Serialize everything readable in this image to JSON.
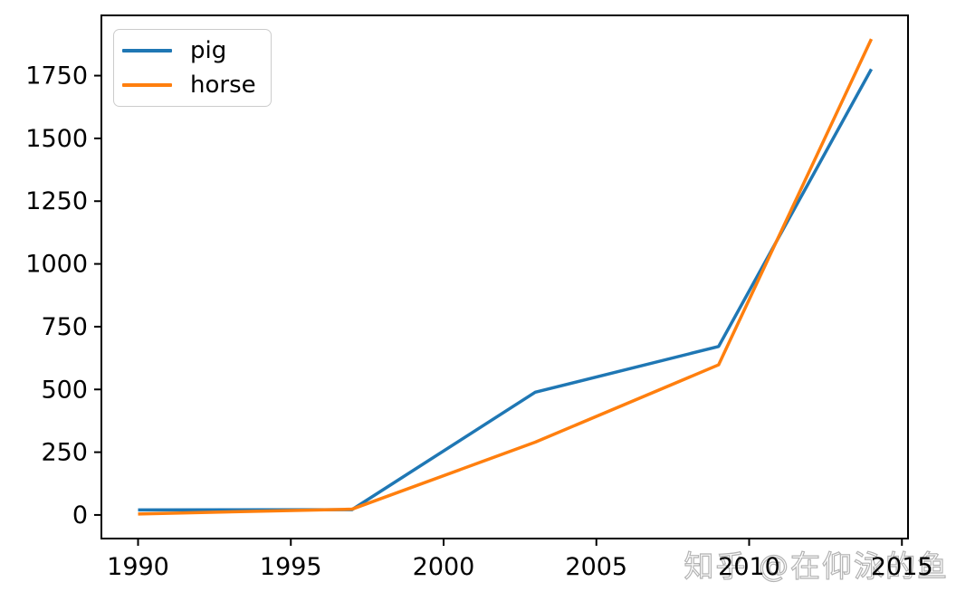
{
  "figure": {
    "background": "#ffffff",
    "watermark": {
      "text": "知乎 @在仰泳的鱼",
      "color": "#b3b3b3"
    }
  },
  "chart_data": {
    "type": "line",
    "x": [
      1990,
      1997,
      2003,
      2009,
      2014
    ],
    "series": [
      {
        "name": "pig",
        "color": "#1f77b4",
        "values": [
          20,
          21,
          489,
          671,
          1776
        ]
      },
      {
        "name": "horse",
        "color": "#ff7f0e",
        "values": [
          4,
          23,
          290,
          598,
          1896
        ]
      }
    ],
    "xticks": [
      1990,
      1995,
      2000,
      2005,
      2010,
      2015
    ],
    "yticks": [
      0,
      250,
      500,
      750,
      1000,
      1250,
      1500,
      1750
    ],
    "xlim": [
      1988.8,
      2015.2
    ],
    "ylim": [
      -94,
      1990
    ],
    "grid": false,
    "legend": {
      "position": "upper left",
      "labels": [
        "pig",
        "horse"
      ]
    },
    "axis_color": "#000000",
    "tick_label_color": "#000000"
  }
}
